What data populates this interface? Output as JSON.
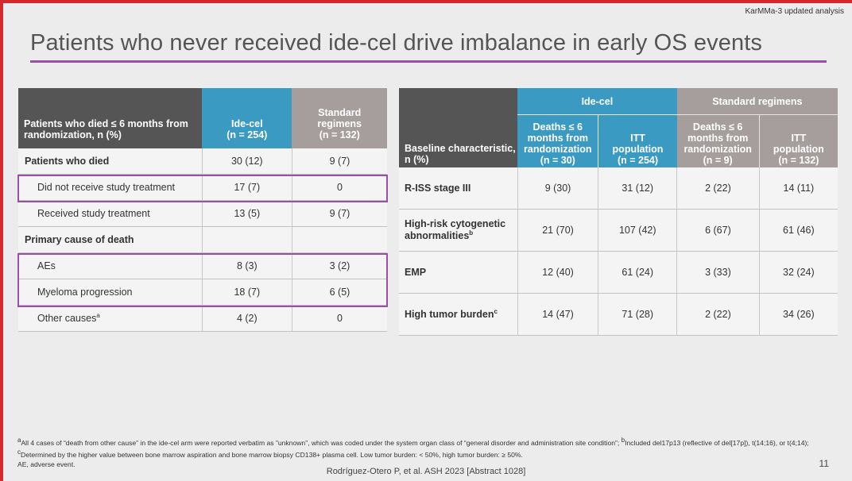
{
  "header": {
    "study_label": "KarMMa-3 updated analysis",
    "title": "Patients who never received ide-cel drive imbalance in early OS events"
  },
  "colors": {
    "accent_red": "#d22a2f",
    "purple_rule": "#9b4fa6",
    "ide_cel_blue": "#3b9ac2",
    "standard_gray": "#a59e9d",
    "dark_header": "#555555"
  },
  "left_table": {
    "header": {
      "label": "Patients who died ≤ 6 months from randomization, n (%)",
      "ide_cel": "Ide-cel",
      "ide_cel_n": "(n = 254)",
      "standard": "Standard regimens",
      "standard_n": "(n = 132)"
    },
    "rows": [
      {
        "label": "Patients who died",
        "ide": "30 (12)",
        "std": "9 (7)"
      },
      {
        "label": "Did not receive study treatment",
        "ide": "17 (7)",
        "std": "0"
      },
      {
        "label": "Received study treatment",
        "ide": "13 (5)",
        "std": "9 (7)"
      },
      {
        "label": "Primary cause of death",
        "ide": "",
        "std": ""
      },
      {
        "label": "AEs",
        "ide": "8 (3)",
        "std": "3 (2)"
      },
      {
        "label": "Myeloma progression",
        "ide": "18 (7)",
        "std": "6 (5)"
      },
      {
        "label": "Other causes",
        "label_sup": "a",
        "ide": "4 (2)",
        "std": "0"
      }
    ]
  },
  "right_table": {
    "group_headers": {
      "ide_cel": "Ide-cel",
      "standard": "Standard regimens"
    },
    "baseline_label": "Baseline characteristic, n (%)",
    "sub_headers": [
      {
        "l1": "Deaths ≤ 6",
        "l2": "months from",
        "l3": "randomization",
        "n": "(n = 30)"
      },
      {
        "l1": "ITT",
        "l2": "population",
        "n": "(n = 254)"
      },
      {
        "l1": "Deaths ≤ 6",
        "l2": "months from",
        "l3": "randomization",
        "n": "(n = 9)"
      },
      {
        "l1": "ITT",
        "l2": "population",
        "n": "(n = 132)"
      }
    ],
    "rows": [
      {
        "label": "R-ISS stage III",
        "sup": "",
        "v": [
          "9 (30)",
          "31 (12)",
          "2 (22)",
          "14 (11)"
        ]
      },
      {
        "label": "High-risk cytogenetic abnormalities",
        "sup": "b",
        "v": [
          "21 (70)",
          "107 (42)",
          "6 (67)",
          "61 (46)"
        ]
      },
      {
        "label": "EMP",
        "sup": "",
        "v": [
          "12 (40)",
          "61 (24)",
          "3 (33)",
          "32 (24)"
        ]
      },
      {
        "label": "High tumor burden",
        "sup": "c",
        "v": [
          "14 (47)",
          "71 (28)",
          "2 (22)",
          "34 (26)"
        ]
      }
    ]
  },
  "footnotes": {
    "a_mark": "a",
    "a_text": "All 4 cases of “death from other cause” in the ide-cel arm were reported verbatim as ”unknown”, which was coded under the system organ class of “general disorder and administration site condition”;",
    "b_mark": "b",
    "b_text": "Included del17p13 (reflective of del[17p]), t(14;16), or t(4;14);",
    "c_mark": "c",
    "c_text": "Determined by the higher value between bone marrow aspiration and bone marrow biopsy CD138+ plasma cell. Low tumor burden: < 50%, high tumor burden: ≥ 50%.",
    "abbrev": "AE, adverse event."
  },
  "citation": "Rodríguez-Otero P, et al. ASH 2023 [Abstract 1028]",
  "page_number": "11"
}
